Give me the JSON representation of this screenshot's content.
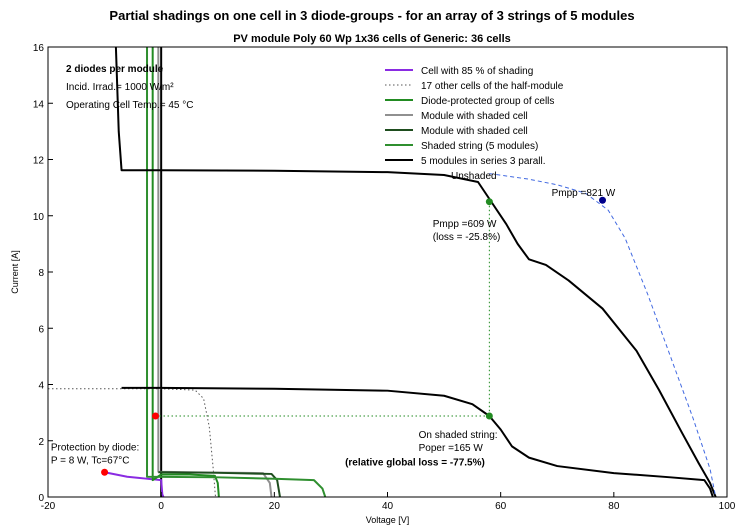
{
  "title": "Partial shadings on one cell in 3 diode-groups  -  for an array of 3 strings of 5 modules",
  "subtitle": "PV module   Poly 60 Wp   1x36 cells  of  Generic:  36 cells",
  "chart_data": {
    "type": "line",
    "xlabel": "Voltage [V]",
    "ylabel": "Current [A]",
    "xlim": [
      -20,
      100
    ],
    "ylim": [
      0,
      16
    ],
    "xticks": [
      -20,
      0,
      20,
      40,
      60,
      80,
      100
    ],
    "yticks": [
      0,
      2,
      4,
      6,
      8,
      10,
      12,
      14,
      16
    ],
    "grid": false,
    "legend_position": "top-right",
    "info_lines": [
      "2 diodes per module",
      "Incid. Irrad.= 1000 W/m²",
      "Operating Cell Temp.= 45 °C"
    ],
    "series": [
      {
        "name": "Cell with   85 % of shading",
        "color": "#8a2be2",
        "style": "solid",
        "points": [
          [
            -10,
            0.88
          ],
          [
            -8,
            0.8
          ],
          [
            -6,
            0.72
          ],
          [
            -4,
            0.68
          ],
          [
            -3,
            0.66
          ],
          [
            -2,
            0.64
          ],
          [
            -1,
            0.62
          ],
          [
            0,
            0.6
          ],
          [
            0.2,
            0.1
          ],
          [
            0.4,
            0
          ]
        ]
      },
      {
        "name": "17 other cells of the half-module",
        "color": "#555555",
        "style": "dotted",
        "points": [
          [
            -20,
            3.85
          ],
          [
            0,
            3.85
          ],
          [
            6,
            3.8
          ],
          [
            7.5,
            3.5
          ],
          [
            8.5,
            2.5
          ],
          [
            9.2,
            1
          ],
          [
            9.6,
            0
          ]
        ]
      },
      {
        "name": "Diode-protected group of cells",
        "color": "#228b22",
        "style": "solid",
        "points": [
          [
            -1.5,
            16
          ],
          [
            -1.5,
            0.6
          ],
          [
            0,
            0.8
          ],
          [
            5,
            0.8
          ],
          [
            9.5,
            0.75
          ],
          [
            10,
            0.5
          ],
          [
            10.2,
            0
          ]
        ]
      },
      {
        "name": "Module with shaded cell",
        "color": "#909090",
        "style": "solid",
        "points": [
          [
            -0.5,
            16
          ],
          [
            -0.5,
            0.9
          ],
          [
            5,
            0.88
          ],
          [
            18,
            0.85
          ],
          [
            19.2,
            0.5
          ],
          [
            19.5,
            0
          ]
        ]
      },
      {
        "name": "Module with shaded cell",
        "color": "#1e4d1e",
        "style": "solid",
        "points": [
          [
            -0.5,
            0.88
          ],
          [
            10,
            0.86
          ],
          [
            19.5,
            0.82
          ],
          [
            20.5,
            0.6
          ],
          [
            21,
            0
          ]
        ]
      },
      {
        "name": "Shaded string (5 modules)",
        "color": "#2f8f2f",
        "style": "solid",
        "points": [
          [
            -2.5,
            16
          ],
          [
            -2.5,
            0.72
          ],
          [
            10,
            0.7
          ],
          [
            20,
            0.65
          ],
          [
            27,
            0.6
          ],
          [
            28.5,
            0.3
          ],
          [
            29,
            0
          ]
        ]
      },
      {
        "name": "5 modules in series  3 parall.",
        "color": "#000000",
        "style": "solid",
        "points": [
          [
            -8,
            16
          ],
          [
            -7.5,
            13
          ],
          [
            -7,
            11.62
          ],
          [
            0,
            11.62
          ],
          [
            20,
            11.6
          ],
          [
            40,
            11.55
          ],
          [
            50,
            11.45
          ],
          [
            56,
            11.2
          ],
          [
            58,
            10.6
          ],
          [
            61,
            9.7
          ],
          [
            63,
            9
          ],
          [
            65,
            8.45
          ],
          [
            68,
            8.25
          ],
          [
            72,
            7.7
          ],
          [
            78,
            6.7
          ],
          [
            84,
            5.2
          ],
          [
            88,
            3.8
          ],
          [
            92,
            2.3
          ],
          [
            95,
            1.2
          ],
          [
            97,
            0.5
          ],
          [
            98,
            0
          ]
        ]
      },
      {
        "name": "",
        "color": "#000000",
        "style": "solid",
        "points": [
          [
            -7,
            3.88
          ],
          [
            0,
            3.88
          ],
          [
            20,
            3.85
          ],
          [
            40,
            3.78
          ],
          [
            50,
            3.6
          ],
          [
            55,
            3.3
          ],
          [
            58,
            2.88
          ],
          [
            60,
            2.4
          ],
          [
            62,
            1.8
          ],
          [
            65,
            1.4
          ],
          [
            70,
            1.1
          ],
          [
            80,
            0.85
          ],
          [
            90,
            0.7
          ],
          [
            96,
            0.6
          ],
          [
            97,
            0.3
          ],
          [
            97.5,
            0
          ]
        ]
      },
      {
        "name": "Unshaded",
        "color": "#4169e1",
        "style": "dashed",
        "points": [
          [
            58,
            11.5
          ],
          [
            65,
            11.3
          ],
          [
            70,
            11.1
          ],
          [
            75,
            10.8
          ],
          [
            79,
            10.2
          ],
          [
            82,
            9.2
          ],
          [
            86,
            7.2
          ],
          [
            90,
            5
          ],
          [
            94,
            2.8
          ],
          [
            97,
            1
          ],
          [
            98,
            0
          ]
        ]
      }
    ],
    "markers": [
      {
        "x": 78,
        "y": 10.55,
        "color": "#00008b"
      },
      {
        "x": 58,
        "y": 10.5,
        "color": "#228b22"
      },
      {
        "x": 58,
        "y": 2.88,
        "color": "#228b22"
      },
      {
        "x": -1,
        "y": 2.88,
        "color": "#ff0000"
      },
      {
        "x": -10,
        "y": 0.88,
        "color": "#ff0000"
      }
    ],
    "guides": [
      {
        "points": [
          [
            58,
            10.5
          ],
          [
            58,
            2.88
          ]
        ],
        "color": "#228b22"
      },
      {
        "points": [
          [
            -1,
            2.88
          ],
          [
            58,
            2.88
          ]
        ],
        "color": "#228b22"
      }
    ],
    "annotations": [
      {
        "lines": [
          "Pmpp =821 W"
        ],
        "x": 69,
        "y": 10.7,
        "color": "#1e3cdc",
        "bold": false
      },
      {
        "lines": [
          "Pmpp =609 W",
          "(loss = -25.8%)"
        ],
        "x": 48,
        "y": 9.6,
        "color": "#000000",
        "bold": false
      },
      {
        "lines": [
          "On shaded string:",
          "Poper =165 W"
        ],
        "x": 45.5,
        "y": 2.1,
        "color": "#000000",
        "bold": false
      },
      {
        "lines": [
          "(relative global loss = -77.5%)"
        ],
        "x": 32.5,
        "y": 1.12,
        "color": "#006400",
        "bold": true
      },
      {
        "lines": [
          "Protection by diode:",
          "P = 8 W, Tc=67°C"
        ],
        "x": -19.5,
        "y": 1.65,
        "color": "#000000",
        "bold": false
      }
    ]
  }
}
